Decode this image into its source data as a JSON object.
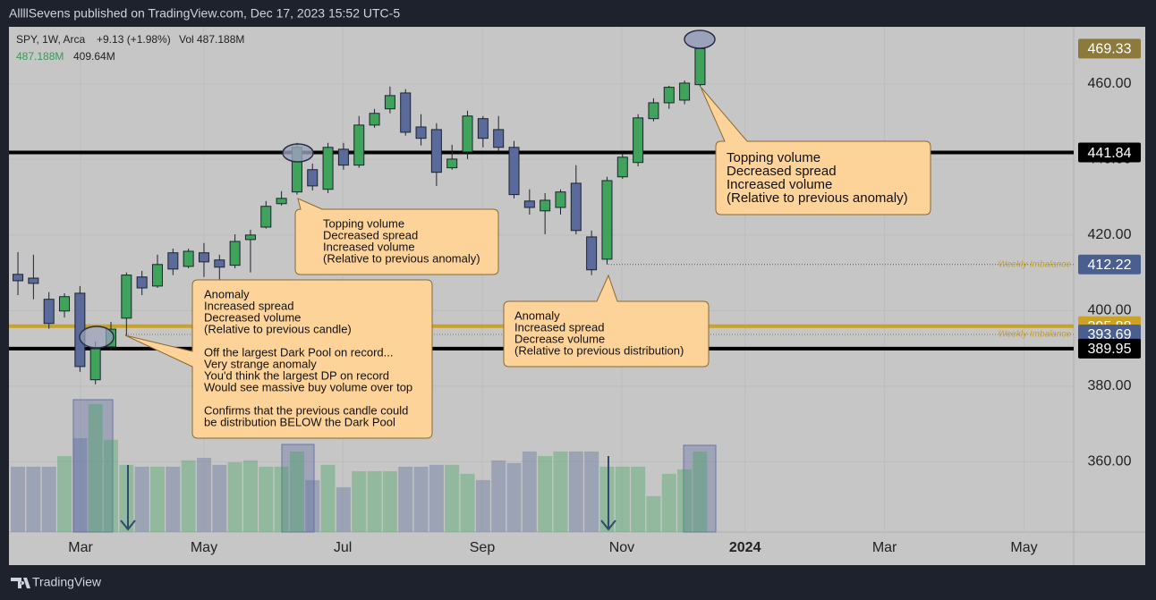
{
  "header": {
    "publisher": "AllllSevens published on TradingView.com, Dec 17, 2023 15:52 UTC-5"
  },
  "legend": {
    "symbol": "SPY, 1W, Arca",
    "change": "+9.13 (+1.98%)",
    "volume_label": "Vol",
    "volume": "487.188M",
    "volume_current": "487.188M",
    "volume_average": "409.64M"
  },
  "chart_data": {
    "type": "candlestick",
    "open": [
      409.6,
      408.6,
      403.0,
      399.9,
      404.6,
      381.7,
      390.4,
      398.0,
      408.9,
      406.5,
      415.3,
      411.7,
      415.3,
      413.4,
      412.0,
      418.8,
      422.1,
      428.3,
      431.4,
      437.3,
      432.1,
      442.7,
      438.5,
      449.1,
      453.4,
      457.6,
      448.6,
      447.9,
      437.8,
      442.0,
      450.8,
      447.9,
      443.2,
      429.0,
      426.4,
      427.3,
      433.7,
      419.5,
      413.6,
      435.4,
      439.2,
      450.8,
      455.0,
      455.7,
      459.8
    ],
    "high": [
      415.5,
      414.8,
      404.9,
      404.6,
      406.5,
      391.8,
      397.0,
      410.1,
      410.5,
      414.8,
      416.4,
      416.4,
      417.9,
      414.8,
      420.2,
      421.4,
      429.0,
      431.6,
      444.4,
      438.9,
      444.4,
      444.4,
      451.5,
      453.4,
      459.3,
      458.6,
      452.0,
      449.6,
      443.9,
      452.9,
      451.5,
      451.5,
      444.9,
      432.1,
      431.1,
      432.1,
      438.5,
      421.2,
      435.4,
      441.5,
      452.0,
      456.2,
      459.5,
      460.9,
      469.9
    ],
    "low": [
      404.1,
      403.0,
      395.2,
      398.2,
      383.8,
      380.5,
      389.5,
      393.5,
      404.1,
      406.0,
      409.4,
      411.2,
      408.9,
      407.0,
      411.2,
      410.1,
      421.7,
      427.8,
      430.7,
      431.8,
      431.1,
      437.3,
      437.8,
      448.4,
      452.2,
      446.3,
      443.7,
      433.0,
      437.3,
      440.1,
      443.2,
      442.0,
      429.7,
      425.4,
      420.2,
      425.4,
      420.2,
      409.4,
      412.2,
      434.9,
      438.2,
      450.1,
      453.4,
      454.6,
      459.3
    ],
    "close": [
      407.9,
      407.2,
      396.6,
      403.7,
      385.2,
      389.9,
      395.1,
      409.4,
      406.0,
      412.2,
      411.0,
      415.7,
      412.9,
      411.5,
      418.3,
      420.0,
      427.6,
      429.7,
      443.2,
      433.0,
      443.2,
      438.5,
      449.1,
      452.2,
      456.9,
      447.2,
      445.6,
      436.6,
      440.1,
      451.5,
      445.6,
      443.2,
      430.7,
      427.3,
      429.2,
      431.4,
      421.2,
      410.8,
      434.4,
      440.6,
      451.0,
      455.0,
      459.1,
      460.2,
      469.33
    ],
    "volume": [
      395,
      395,
      395,
      460,
      568,
      774,
      558,
      406,
      395,
      395,
      395,
      433,
      449,
      406,
      422,
      433,
      395,
      395,
      487,
      314,
      406,
      271,
      368,
      368,
      368,
      395,
      395,
      406,
      406,
      352,
      314,
      433,
      417,
      487,
      460,
      487,
      487,
      487,
      395,
      395,
      395,
      217,
      352,
      379,
      487.188
    ],
    "up_color": "#3fa35c",
    "down_color": "#5a6b9b",
    "ylim": [
      341.4,
      475.1
    ],
    "yticks": [
      {
        "value": 360,
        "label": "360.00"
      },
      {
        "value": 380,
        "label": "380.00"
      },
      {
        "value": 400,
        "label": "400.00"
      },
      {
        "value": 420,
        "label": "420.00"
      },
      {
        "value": 440,
        "label": "440.00"
      },
      {
        "value": 460,
        "label": "460.00"
      }
    ],
    "xlim": [
      -0.58,
      68.1
    ],
    "xticks": [
      {
        "value": 4.04,
        "label": "Mar"
      },
      {
        "value": 12.0,
        "label": "May"
      },
      {
        "value": 20.95,
        "label": "Jul"
      },
      {
        "value": 29.95,
        "label": "Sep"
      },
      {
        "value": 38.95,
        "label": "Nov"
      },
      {
        "value": 46.9,
        "label": "2024"
      },
      {
        "value": 55.9,
        "label": "Mar"
      },
      {
        "value": 64.9,
        "label": "May"
      }
    ],
    "volume_ylim": [
      0,
      800
    ],
    "grid": true,
    "last_price": {
      "value": 469.33,
      "color": "#8c7a3c"
    },
    "levels": [
      {
        "value": 441.84,
        "style": "solid",
        "color": "#000000",
        "label_color": "#000000"
      },
      {
        "value": 412.22,
        "style": "dotted",
        "color": "#4a5f8f",
        "label_color": "#4a5f8f",
        "note": "Weekly Imbalance"
      },
      {
        "value": 395.88,
        "style": "solid",
        "color": "#c9a227",
        "label_color": "#c9a227"
      },
      {
        "value": 393.69,
        "style": "dotted",
        "color": "#8a7a50",
        "label_color": "#4a5f8f",
        "note": "Weekly Imbalance"
      },
      {
        "value": 389.95,
        "style": "solid",
        "color": "#000000",
        "label_color": "#000000"
      }
    ],
    "annotations": [
      {
        "paragraphs": [
          [
            "Topping volume",
            "Decreased spread",
            "Increased volume",
            "(Relative to previous anomaly)"
          ]
        ]
      },
      {
        "paragraphs": [
          [
            "Anomaly",
            "Increased spread",
            "Decreased volume",
            "(Relative to previous candle)"
          ],
          [
            "Off the largest Dark Pool on record...",
            "Very strange anomaly",
            "You'd think the largest DP on record",
            "Would see massive buy volume over top"
          ],
          [
            "Confirms that the previous candle could",
            "be distribution BELOW the Dark Pool"
          ]
        ]
      },
      {
        "paragraphs": [
          [
            "Anomaly",
            "Increased spread",
            "Decrease volume",
            "(Relative to previous distribution)"
          ]
        ]
      },
      {
        "paragraphs": [
          [
            "Topping volume",
            "Decreased spread",
            "Increased volume",
            "(Relative to previous anomaly)"
          ]
        ]
      }
    ]
  },
  "footer": {
    "brand": "TradingView"
  }
}
